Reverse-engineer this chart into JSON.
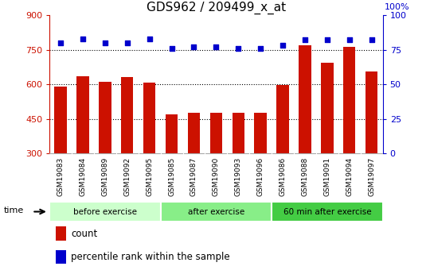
{
  "title": "GDS962 / 209499_x_at",
  "samples": [
    "GSM19083",
    "GSM19084",
    "GSM19089",
    "GSM19092",
    "GSM19095",
    "GSM19085",
    "GSM19087",
    "GSM19090",
    "GSM19093",
    "GSM19096",
    "GSM19086",
    "GSM19088",
    "GSM19091",
    "GSM19094",
    "GSM19097"
  ],
  "counts": [
    590,
    635,
    610,
    630,
    607,
    468,
    475,
    475,
    478,
    478,
    597,
    770,
    695,
    762,
    655
  ],
  "percentiles": [
    80,
    83,
    80,
    80,
    83,
    76,
    77,
    77,
    76,
    76,
    78,
    82,
    82,
    82,
    82
  ],
  "groups": [
    {
      "label": "before exercise",
      "start": 0,
      "end": 5,
      "color": "#ccffcc"
    },
    {
      "label": "after exercise",
      "start": 5,
      "end": 10,
      "color": "#88ee88"
    },
    {
      "label": "60 min after exercise",
      "start": 10,
      "end": 15,
      "color": "#44cc44"
    }
  ],
  "y_min": 300,
  "y_max": 900,
  "yticks_left": [
    300,
    450,
    600,
    750,
    900
  ],
  "yticks_right": [
    0,
    25,
    50,
    75,
    100
  ],
  "p_min": 0,
  "p_max": 100,
  "bar_color": "#cc1100",
  "dot_color": "#0000cc",
  "bar_width": 0.55,
  "legend_items": [
    "count",
    "percentile rank within the sample"
  ],
  "tick_label_color_left": "#cc1100",
  "tick_label_color_right": "#0000cc",
  "right_axis_top_label": "100%",
  "title_fontsize": 11,
  "xtick_fontsize": 6.5,
  "ytick_fontsize": 8
}
